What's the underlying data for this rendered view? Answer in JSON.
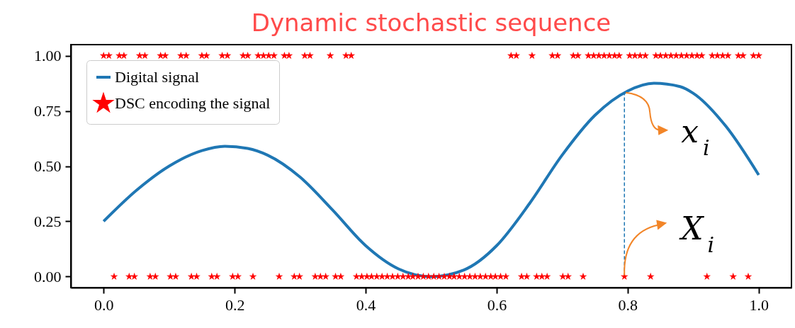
{
  "chart_data": {
    "type": "line",
    "title": "Dynamic stochastic sequence",
    "xlim": [
      -0.05,
      1.05
    ],
    "ylim": [
      -0.05,
      1.05
    ],
    "xticks": [
      {
        "value": 0,
        "label": "0.0"
      },
      {
        "value": 0.2,
        "label": "0.2"
      },
      {
        "value": 0.4,
        "label": "0.4"
      },
      {
        "value": 0.6,
        "label": "0.6"
      },
      {
        "value": 0.8,
        "label": "0.8"
      },
      {
        "value": 1,
        "label": "1.0"
      }
    ],
    "yticks": [
      {
        "value": 0,
        "label": "0.00"
      },
      {
        "value": 0.25,
        "label": "0.25"
      },
      {
        "value": 0.5,
        "label": "0.50"
      },
      {
        "value": 0.75,
        "label": "0.75"
      },
      {
        "value": 1,
        "label": "1.00"
      }
    ],
    "grid": false,
    "legend": "top left",
    "annotations": [
      {
        "text": "x$_{i}$",
        "x": 0.795,
        "y": 0.833
      },
      {
        "text": "X$_{i}$",
        "x": 0.795,
        "y": 0
      }
    ],
    "series": [
      {
        "name": "Digital signal",
        "color": "#1f77b4",
        "x": [
          0,
          0.05,
          0.1,
          0.15,
          0.185,
          0.22,
          0.25,
          0.3,
          0.35,
          0.4,
          0.45,
          0.5,
          0.55,
          0.6,
          0.65,
          0.7,
          0.75,
          0.8,
          0.84,
          0.88,
          0.9,
          0.95,
          1
        ],
        "values": [
          0.25,
          0.39,
          0.5,
          0.57,
          0.59,
          0.58,
          0.55,
          0.45,
          0.3,
          0.14,
          0.035,
          0,
          0.03,
          0.14,
          0.33,
          0.55,
          0.73,
          0.84,
          0.875,
          0.86,
          0.83,
          0.68,
          0.46
        ]
      },
      {
        "type": "line",
        "line_style": "dashed",
        "color": "#1f77b4",
        "x": [
          0.795,
          0.795
        ],
        "values": [
          0,
          0.833
        ]
      },
      {
        "name": "DSC encoding the signal",
        "type": "scatter",
        "marker": "star",
        "color": "#ff0000",
        "x": [
          0,
          0.008,
          0.016,
          0.024,
          0.031,
          0.039,
          0.047,
          0.055,
          0.063,
          0.071,
          0.079,
          0.087,
          0.094,
          0.102,
          0.11,
          0.118,
          0.126,
          0.134,
          0.142,
          0.15,
          0.157,
          0.165,
          0.173,
          0.181,
          0.189,
          0.197,
          0.205,
          0.213,
          0.22,
          0.228,
          0.236,
          0.244,
          0.252,
          0.26,
          0.268,
          0.276,
          0.283,
          0.291,
          0.299,
          0.307,
          0.315,
          0.323,
          0.331,
          0.339,
          0.346,
          0.354,
          0.362,
          0.37,
          0.378,
          0.386,
          0.394,
          0.402,
          0.409,
          0.417,
          0.425,
          0.433,
          0.441,
          0.449,
          0.457,
          0.465,
          0.472,
          0.48,
          0.488,
          0.496,
          0.504,
          0.512,
          0.52,
          0.528,
          0.535,
          0.543,
          0.551,
          0.559,
          0.567,
          0.575,
          0.583,
          0.591,
          0.598,
          0.606,
          0.614,
          0.622,
          0.63,
          0.638,
          0.646,
          0.654,
          0.661,
          0.669,
          0.677,
          0.685,
          0.693,
          0.701,
          0.709,
          0.717,
          0.724,
          0.732,
          0.74,
          0.748,
          0.756,
          0.764,
          0.772,
          0.78,
          0.787,
          0.795,
          0.803,
          0.811,
          0.819,
          0.827,
          0.835,
          0.843,
          0.85,
          0.858,
          0.866,
          0.874,
          0.882,
          0.89,
          0.898,
          0.906,
          0.913,
          0.921,
          0.929,
          0.937,
          0.945,
          0.953,
          0.961,
          0.969,
          0.976,
          0.984,
          0.992,
          1
        ],
        "values": [
          1,
          1,
          0,
          1,
          1,
          0,
          0,
          1,
          1,
          0,
          0,
          1,
          1,
          0,
          0,
          1,
          1,
          0,
          0,
          1,
          1,
          0,
          0,
          1,
          1,
          0,
          0,
          1,
          1,
          0,
          1,
          1,
          1,
          1,
          0,
          1,
          1,
          0,
          0,
          1,
          1,
          0,
          0,
          0,
          1,
          0,
          0,
          1,
          1,
          0,
          0,
          0,
          0,
          0,
          0,
          0,
          0,
          0,
          0,
          0,
          0,
          0,
          0,
          0,
          0,
          0,
          0,
          0,
          0,
          0,
          0,
          0,
          0,
          0,
          0,
          0,
          0,
          0,
          0,
          1,
          1,
          0,
          0,
          1,
          0,
          0,
          0,
          1,
          1,
          0,
          0,
          1,
          1,
          0,
          1,
          1,
          1,
          1,
          1,
          1,
          1,
          0,
          1,
          1,
          1,
          1,
          0,
          1,
          1,
          1,
          1,
          1,
          1,
          1,
          1,
          1,
          1,
          0,
          1,
          1,
          1,
          1,
          0,
          1,
          1,
          0,
          1,
          1
        ]
      }
    ]
  }
}
